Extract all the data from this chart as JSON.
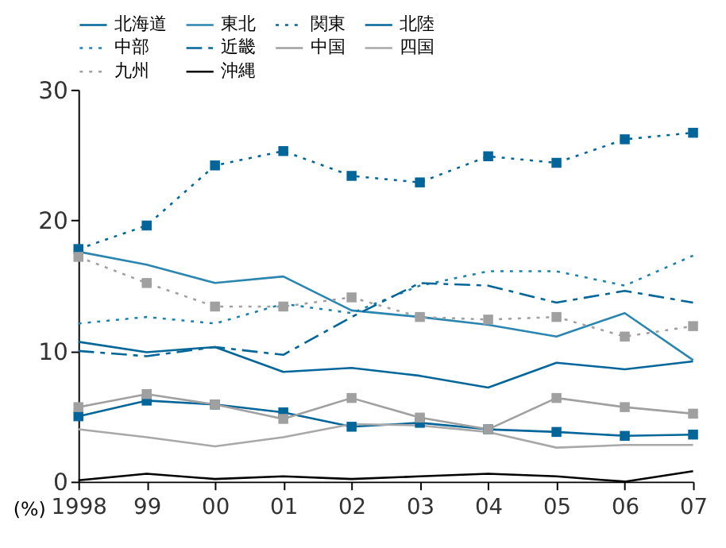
{
  "chart_data": {
    "type": "line",
    "ylabel": "(%)",
    "categories": [
      "1998",
      "99",
      "00",
      "01",
      "02",
      "03",
      "04",
      "05",
      "06",
      "07"
    ],
    "ylim": [
      0,
      30
    ],
    "yticks": [
      0,
      10,
      20,
      30
    ],
    "grid": false,
    "legend": "top",
    "series": [
      {
        "name": "北海道",
        "color": "#006699",
        "marker": "square",
        "line_style": "solid",
        "values": [
          5.0,
          6.2,
          5.9,
          5.3,
          4.2,
          4.5,
          4.0,
          3.8,
          3.5,
          3.6
        ]
      },
      {
        "name": "東北",
        "color": "#2a86b0",
        "line_style": "solid",
        "values": [
          17.6,
          16.6,
          15.2,
          15.7,
          13.1,
          12.6,
          12.0,
          11.1,
          12.9,
          9.3
        ]
      },
      {
        "name": "関東",
        "color": "#006699",
        "marker": "square",
        "line_style": "dotted",
        "values": [
          17.8,
          19.6,
          24.2,
          25.3,
          23.4,
          22.9,
          24.9,
          24.4,
          26.2,
          26.7
        ]
      },
      {
        "name": "北陸",
        "color": "#006699",
        "line_style": "solid",
        "values": [
          10.7,
          9.9,
          10.3,
          8.4,
          8.7,
          8.1,
          7.2,
          9.1,
          8.6,
          9.2
        ]
      },
      {
        "name": "中部",
        "color": "#1a80b0",
        "line_style": "dotted",
        "values": [
          12.1,
          12.6,
          12.1,
          13.6,
          12.9,
          15.0,
          16.1,
          16.1,
          15.0,
          17.3
        ]
      },
      {
        "name": "近畿",
        "color": "#006699",
        "line_style": "dashed",
        "values": [
          10.0,
          9.6,
          10.3,
          9.7,
          12.6,
          15.2,
          15.0,
          13.7,
          14.6,
          13.7
        ]
      },
      {
        "name": "中国",
        "color": "#a0a0a0",
        "marker": "square",
        "line_style": "solid",
        "values": [
          5.7,
          6.7,
          5.9,
          4.8,
          6.4,
          4.9,
          4.0,
          6.4,
          5.7,
          5.2
        ]
      },
      {
        "name": "四国",
        "color": "#a8a8a8",
        "line_style": "solid",
        "values": [
          4.0,
          3.4,
          2.7,
          3.4,
          4.4,
          4.3,
          3.8,
          2.6,
          2.8,
          2.8
        ]
      },
      {
        "name": "九州",
        "color": "#a0a0a0",
        "marker": "square",
        "line_style": "dotted",
        "values": [
          17.2,
          15.2,
          13.4,
          13.4,
          14.1,
          12.6,
          12.4,
          12.6,
          11.1,
          11.9
        ]
      },
      {
        "name": "沖縄",
        "color": "#000000",
        "line_style": "solid",
        "values": [
          0.1,
          0.6,
          0.2,
          0.4,
          0.2,
          0.4,
          0.6,
          0.4,
          0.0,
          0.8
        ]
      }
    ]
  }
}
